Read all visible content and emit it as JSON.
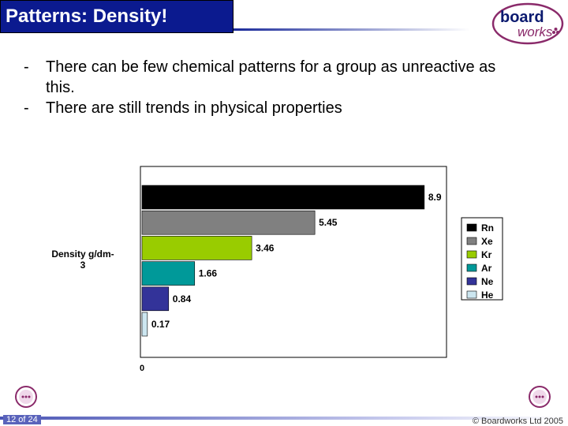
{
  "header": {
    "title": "Patterns: Density!"
  },
  "logo": {
    "line1": "board",
    "line2": "works"
  },
  "bullets": [
    {
      "dash": "-",
      "text": "There can be few chemical patterns for a group as unreactive as this."
    },
    {
      "dash": "-",
      "text": "There are still trends in physical properties"
    }
  ],
  "chart_data": {
    "type": "bar",
    "orientation": "horizontal",
    "ylabel": "Density g/dm-3",
    "x_tick_label": "0",
    "xlim": [
      0,
      9.6
    ],
    "categories": [
      "Rn",
      "Xe",
      "Kr",
      "Ar",
      "Ne",
      "He"
    ],
    "values": [
      8.9,
      5.45,
      3.46,
      1.66,
      0.84,
      0.17
    ],
    "value_labels": [
      "8.9",
      "5.45",
      "3.46",
      "1.66",
      "0.84",
      "0.17"
    ],
    "colors": [
      "#000000",
      "#808080",
      "#99cc00",
      "#009999",
      "#333399",
      "#cce6f0"
    ],
    "legend": {
      "placement": "right"
    }
  },
  "footer": {
    "slide_number": "12 of 24",
    "copyright": "© Boardworks Ltd 2005"
  }
}
